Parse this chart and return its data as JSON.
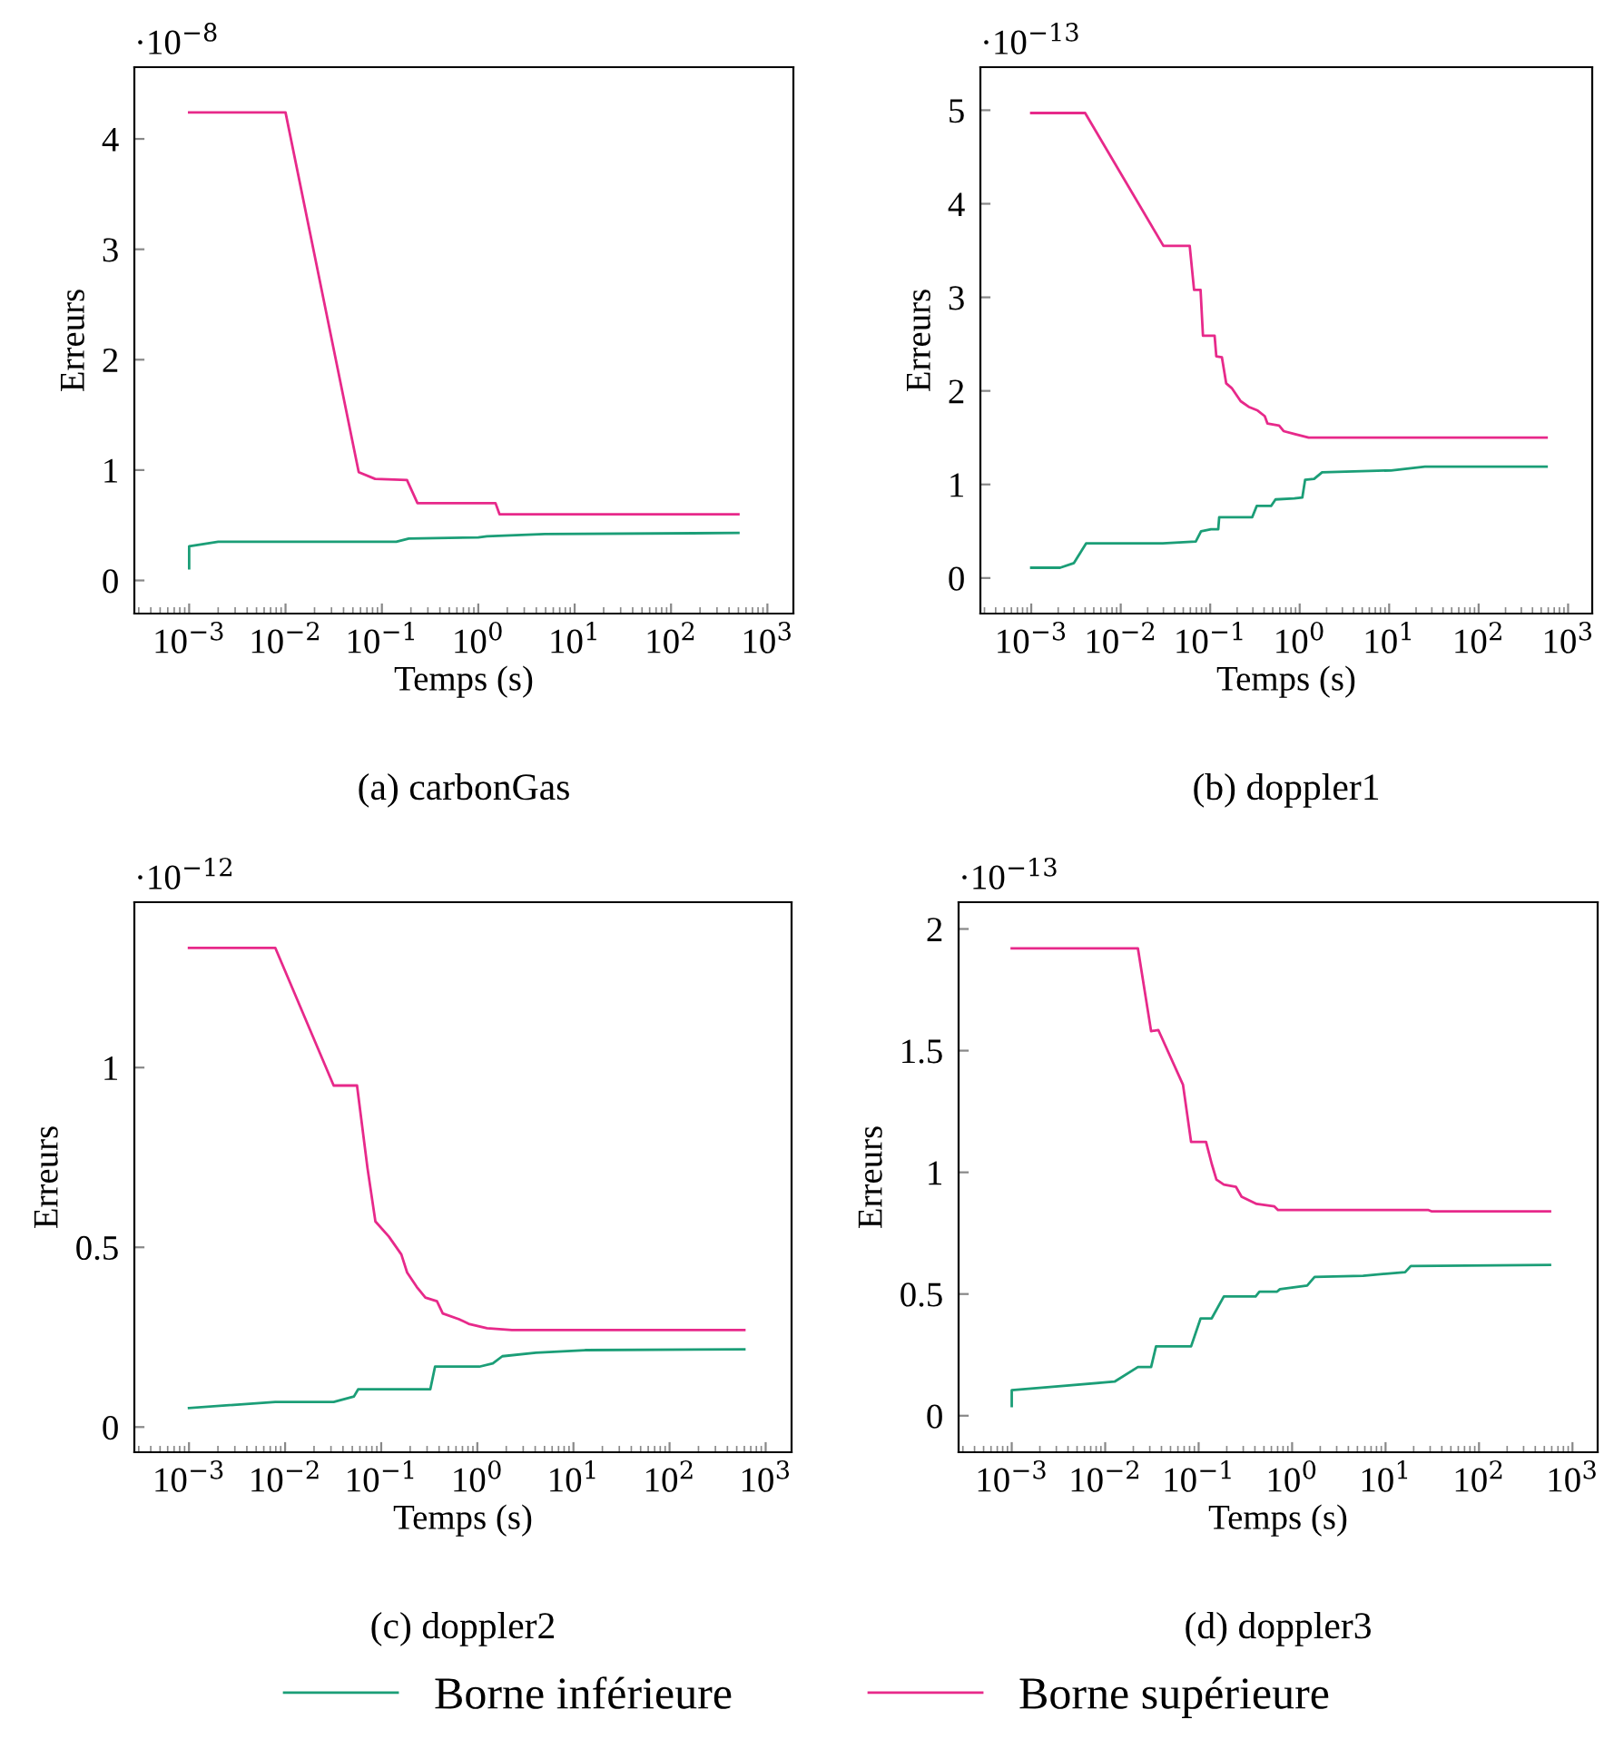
{
  "chart_data": [
    {
      "type": "line",
      "subtitle": "(a) carbonGas",
      "xlabel": "Temps (s)",
      "ylabel": "Erreurs",
      "annotations": [
        "·10$^{−8}$"
      ],
      "log": "x",
      "legend": "bottom",
      "xlim": [
        0.00027,
        1860
      ],
      "xticks": [
        {
          "value": 0.001,
          "label": "10$^{−3}$"
        },
        {
          "value": 0.01,
          "label": "10$^{−2}$"
        },
        {
          "value": 0.1,
          "label": "10$^{−1}$"
        },
        {
          "value": 1,
          "label": "10$^{0}$"
        },
        {
          "value": 10,
          "label": "10$^{1}$"
        },
        {
          "value": 100,
          "label": "10$^{2}$"
        },
        {
          "value": 1000,
          "label": "10$^{3}$"
        }
      ],
      "ylim": [
        -0.3,
        4.65
      ],
      "yticks": [
        0,
        1,
        2,
        3,
        4
      ],
      "series": [
        {
          "name": "Borne inférieure",
          "color": "#1b9e77",
          "x": [
            0.001,
            0.001,
            0.002,
            0.141,
            0.19,
            1,
            1.23,
            4.9,
            500
          ],
          "values": [
            0.11,
            0.31,
            0.35,
            0.35,
            0.38,
            0.39,
            0.4,
            0.42,
            0.43
          ]
        },
        {
          "name": "Borne supérieure",
          "color": "#e7298a",
          "x": [
            0.001,
            0.01,
            0.0575,
            0.085,
            0.182,
            0.234,
            1.51,
            1.66,
            500
          ],
          "values": [
            4.24,
            4.24,
            0.98,
            0.92,
            0.91,
            0.7,
            0.7,
            0.6,
            0.6
          ]
        }
      ]
    },
    {
      "type": "line",
      "subtitle": "(b) doppler1",
      "xlabel": "Temps (s)",
      "ylabel": "Erreurs",
      "annotations": [
        "·10$^{−13}$"
      ],
      "log": "x",
      "xlim": [
        0.00027,
        1860
      ],
      "xticks": [
        {
          "value": 0.001,
          "label": "10$^{−3}$"
        },
        {
          "value": 0.01,
          "label": "10$^{−2}$"
        },
        {
          "value": 0.1,
          "label": "10$^{−1}$"
        },
        {
          "value": 1,
          "label": "10$^{0}$"
        },
        {
          "value": 10,
          "label": "10$^{1}$"
        },
        {
          "value": 100,
          "label": "10$^{2}$"
        },
        {
          "value": 1000,
          "label": "10$^{3}$"
        }
      ],
      "ylim": [
        -0.38,
        5.46
      ],
      "yticks": [
        0,
        1,
        2,
        3,
        4,
        5
      ],
      "series": [
        {
          "color": "#1b9e77",
          "x": [
            0.001,
            0.0021,
            0.003,
            0.0041,
            0.0295,
            0.069,
            0.079,
            0.102,
            0.123,
            0.126,
            0.295,
            0.331,
            0.479,
            0.537,
            0.871,
            1.07,
            1.15,
            1.45,
            1.78,
            10.5,
            25.1,
            575
          ],
          "values": [
            0.11,
            0.11,
            0.16,
            0.37,
            0.37,
            0.39,
            0.5,
            0.52,
            0.52,
            0.65,
            0.65,
            0.77,
            0.77,
            0.84,
            0.85,
            0.86,
            1.05,
            1.06,
            1.13,
            1.15,
            1.19,
            1.19
          ]
        },
        {
          "color": "#e7298a",
          "x": [
            0.001,
            0.004,
            0.03,
            0.059,
            0.066,
            0.078,
            0.083,
            0.112,
            0.117,
            0.135,
            0.151,
            0.174,
            0.219,
            0.269,
            0.339,
            0.407,
            0.437,
            0.589,
            0.661,
            0.871,
            1.26,
            575
          ],
          "values": [
            4.97,
            4.97,
            3.55,
            3.55,
            3.08,
            3.08,
            2.59,
            2.59,
            2.37,
            2.36,
            2.08,
            2.03,
            1.89,
            1.83,
            1.79,
            1.73,
            1.65,
            1.63,
            1.57,
            1.54,
            1.5,
            1.5
          ]
        }
      ]
    },
    {
      "type": "line",
      "subtitle": "(c) doppler2",
      "xlabel": "Temps (s)",
      "ylabel": "Erreurs",
      "annotations": [
        "·10$^{−12}$"
      ],
      "log": "x",
      "xlim": [
        0.00027,
        1860
      ],
      "xticks": [
        {
          "value": 0.001,
          "label": "10$^{−3}$"
        },
        {
          "value": 0.01,
          "label": "10$^{−2}$"
        },
        {
          "value": 0.1,
          "label": "10$^{−1}$"
        },
        {
          "value": 1,
          "label": "10$^{0}$"
        },
        {
          "value": 10,
          "label": "10$^{1}$"
        },
        {
          "value": 100,
          "label": "10$^{2}$"
        },
        {
          "value": 1000,
          "label": "10$^{3}$"
        }
      ],
      "ylim": [
        -0.07,
        1.46
      ],
      "yticks": [
        0,
        0.5,
        1
      ],
      "series": [
        {
          "color": "#1b9e77",
          "x": [
            0.001,
            0.0079,
            0.032,
            0.052,
            0.0575,
            0.324,
            0.363,
            1.05,
            1.45,
            1.82,
            4.07,
            13.2,
            600
          ],
          "values": [
            0.053,
            0.07,
            0.07,
            0.085,
            0.105,
            0.105,
            0.168,
            0.168,
            0.177,
            0.197,
            0.207,
            0.214,
            0.216
          ]
        },
        {
          "color": "#e7298a",
          "x": [
            0.001,
            0.0079,
            0.032,
            0.056,
            0.072,
            0.087,
            0.12,
            0.162,
            0.186,
            0.234,
            0.288,
            0.38,
            0.437,
            0.646,
            0.813,
            1.26,
            2.29,
            600
          ],
          "values": [
            1.333,
            1.333,
            0.95,
            0.95,
            0.72,
            0.572,
            0.53,
            0.48,
            0.43,
            0.39,
            0.36,
            0.35,
            0.316,
            0.3,
            0.287,
            0.275,
            0.27,
            0.27
          ]
        }
      ]
    },
    {
      "type": "line",
      "subtitle": "(d) doppler3",
      "xlabel": "Temps (s)",
      "ylabel": "Erreurs",
      "annotations": [
        "·10$^{−13}$"
      ],
      "log": "x",
      "xlim": [
        0.00027,
        1860
      ],
      "xticks": [
        {
          "value": 0.001,
          "label": "10$^{−3}$"
        },
        {
          "value": 0.01,
          "label": "10$^{−2}$"
        },
        {
          "value": 0.1,
          "label": "10$^{−1}$"
        },
        {
          "value": 1,
          "label": "10$^{0}$"
        },
        {
          "value": 10,
          "label": "10$^{1}$"
        },
        {
          "value": 100,
          "label": "10$^{2}$"
        },
        {
          "value": 1000,
          "label": "10$^{3}$"
        }
      ],
      "ylim": [
        -0.15,
        2.11
      ],
      "yticks": [
        0,
        0.5,
        1,
        1.5,
        2
      ],
      "series": [
        {
          "color": "#1b9e77",
          "x": [
            0.001,
            0.001,
            0.0126,
            0.0224,
            0.031,
            0.035,
            0.083,
            0.105,
            0.138,
            0.186,
            0.407,
            0.447,
            0.692,
            0.741,
            1.45,
            1.74,
            5.75,
            16.2,
            18.6,
            575
          ],
          "values": [
            0.04,
            0.105,
            0.14,
            0.2,
            0.2,
            0.285,
            0.285,
            0.4,
            0.4,
            0.49,
            0.49,
            0.51,
            0.51,
            0.52,
            0.535,
            0.57,
            0.575,
            0.59,
            0.615,
            0.62
          ]
        },
        {
          "color": "#e7298a",
          "x": [
            0.001,
            0.0224,
            0.031,
            0.037,
            0.068,
            0.083,
            0.12,
            0.138,
            0.155,
            0.186,
            0.251,
            0.288,
            0.417,
            0.646,
            0.708,
            28.8,
            30.9,
            575
          ],
          "values": [
            1.92,
            1.92,
            1.58,
            1.585,
            1.36,
            1.125,
            1.125,
            1.035,
            0.97,
            0.95,
            0.94,
            0.9,
            0.87,
            0.86,
            0.845,
            0.845,
            0.84,
            0.84
          ]
        }
      ]
    }
  ]
}
